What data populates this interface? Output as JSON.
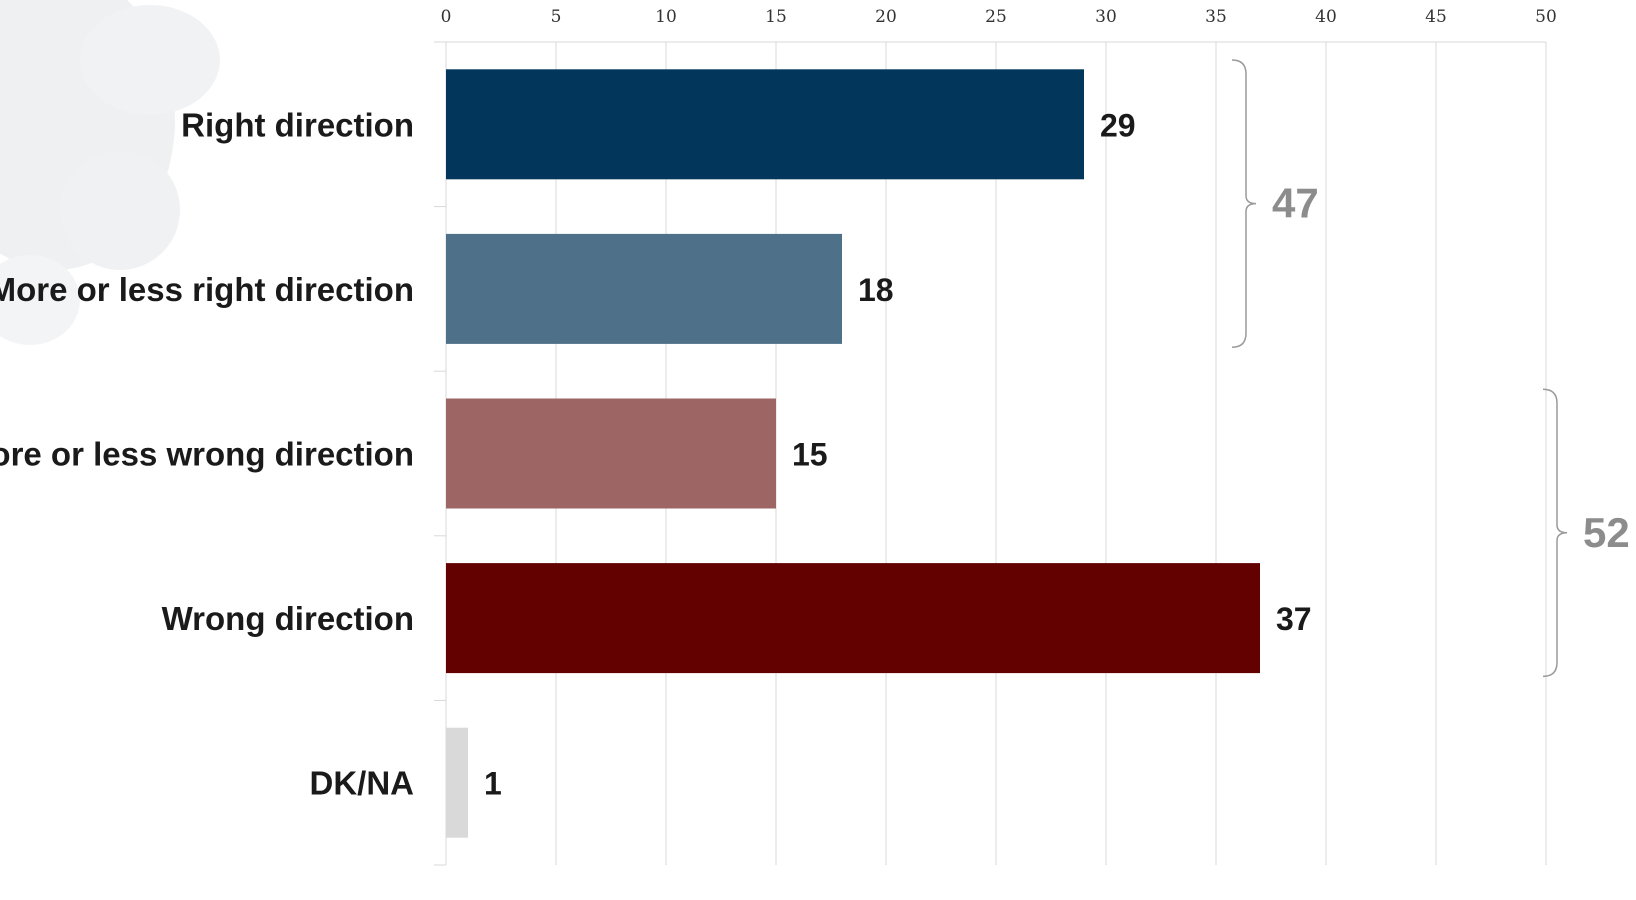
{
  "chart_data": {
    "type": "bar",
    "orientation": "horizontal",
    "categories": [
      "Right direction",
      "More or less right direction",
      "More or less wrong direction",
      "Wrong direction",
      "DK/NA"
    ],
    "values": [
      29,
      18,
      15,
      37,
      1
    ],
    "colors": [
      "#02365a",
      "#4e7089",
      "#9d6563",
      "#630000",
      "#d9d9d9"
    ],
    "xlim": [
      0,
      50
    ],
    "xticks": [
      0,
      5,
      10,
      15,
      20,
      25,
      30,
      35,
      40,
      45,
      50
    ],
    "xaxis_position": "top",
    "grid": true,
    "groups": [
      {
        "value": 47,
        "from": 0,
        "to": 1
      },
      {
        "value": 52,
        "from": 2,
        "to": 3
      }
    ]
  }
}
